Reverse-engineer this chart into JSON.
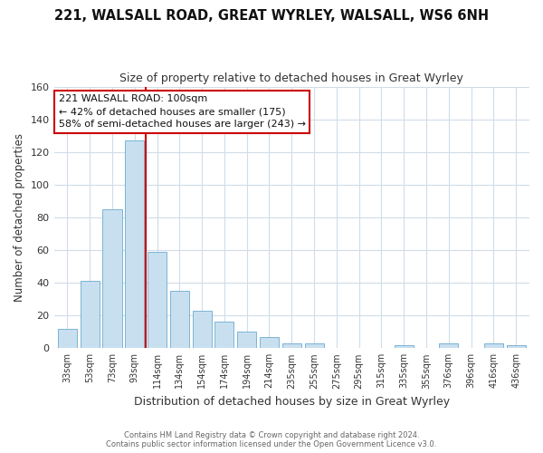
{
  "title": "221, WALSALL ROAD, GREAT WYRLEY, WALSALL, WS6 6NH",
  "subtitle": "Size of property relative to detached houses in Great Wyrley",
  "xlabel": "Distribution of detached houses by size in Great Wyrley",
  "ylabel": "Number of detached properties",
  "bar_labels": [
    "33sqm",
    "53sqm",
    "73sqm",
    "93sqm",
    "114sqm",
    "134sqm",
    "154sqm",
    "174sqm",
    "194sqm",
    "214sqm",
    "235sqm",
    "255sqm",
    "275sqm",
    "295sqm",
    "315sqm",
    "335sqm",
    "355sqm",
    "376sqm",
    "396sqm",
    "416sqm",
    "436sqm"
  ],
  "bar_heights": [
    12,
    41,
    85,
    127,
    59,
    35,
    23,
    16,
    10,
    7,
    3,
    3,
    0,
    0,
    0,
    2,
    0,
    3,
    0,
    3,
    2
  ],
  "bar_color": "#c8dff0",
  "bar_edge_color": "#7ab4d4",
  "vline_x": 3.5,
  "vline_color": "#cc0000",
  "ylim": [
    0,
    160
  ],
  "yticks": [
    0,
    20,
    40,
    60,
    80,
    100,
    120,
    140,
    160
  ],
  "annotation_lines": [
    "221 WALSALL ROAD: 100sqm",
    "← 42% of detached houses are smaller (175)",
    "58% of semi-detached houses are larger (243) →"
  ],
  "background_color": "#ffffff",
  "plot_bg_color": "#ffffff",
  "grid_color": "#d0dce8",
  "footer_line1": "Contains HM Land Registry data © Crown copyright and database right 2024.",
  "footer_line2": "Contains public sector information licensed under the Open Government Licence v3.0."
}
